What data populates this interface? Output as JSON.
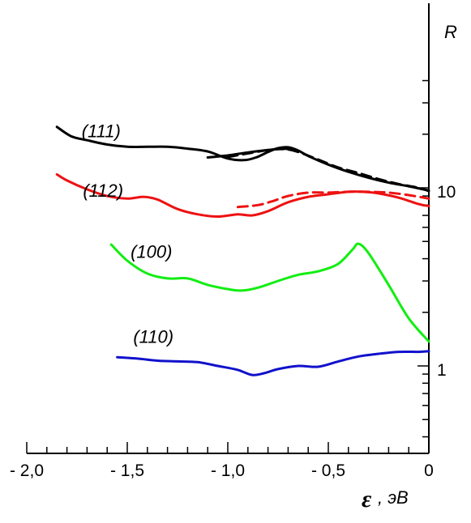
{
  "chart_data": {
    "type": "line",
    "xlim": [
      -2.0,
      0
    ],
    "ylim_log": [
      0.3,
      40
    ],
    "y_scale": "log",
    "x_ticks": [
      {
        "value": -2.0,
        "label": "- 2,0"
      },
      {
        "value": -1.5,
        "label": "- 1,5"
      },
      {
        "value": -1.0,
        "label": "- 1,0"
      },
      {
        "value": -0.5,
        "label": "- 0,5"
      },
      {
        "value": 0,
        "label": "0"
      }
    ],
    "y_ticks": [
      {
        "value": 10,
        "label": "10"
      },
      {
        "value": 1,
        "label": "1"
      }
    ],
    "xlabel_symbol": "ε",
    "xlabel_unit": ", эВ",
    "ylabel": "R",
    "series": [
      {
        "name": "(111)",
        "color": "#000000",
        "dashed": false,
        "points": [
          [
            -1.85,
            22
          ],
          [
            -1.78,
            19.5
          ],
          [
            -1.7,
            18.5
          ],
          [
            -1.6,
            17.5
          ],
          [
            -1.5,
            17
          ],
          [
            -1.4,
            17
          ],
          [
            -1.3,
            17
          ],
          [
            -1.2,
            16.6
          ],
          [
            -1.1,
            16
          ],
          [
            -1.0,
            14.6
          ],
          [
            -0.92,
            14.3
          ],
          [
            -0.86,
            14.8
          ],
          [
            -0.8,
            15.9
          ],
          [
            -0.75,
            16.7
          ],
          [
            -0.7,
            16.9
          ],
          [
            -0.65,
            16.2
          ],
          [
            -0.6,
            15.1
          ],
          [
            -0.5,
            13.5
          ],
          [
            -0.4,
            12.3
          ],
          [
            -0.3,
            11.4
          ],
          [
            -0.2,
            10.7
          ],
          [
            -0.1,
            10.2
          ],
          [
            0,
            9.65
          ]
        ]
      },
      {
        "name": "",
        "color": "#000000",
        "dashed": false,
        "points": [
          [
            -1.1,
            14.8
          ],
          [
            -1.0,
            15.2
          ],
          [
            -0.9,
            15.8
          ],
          [
            -0.8,
            16.3
          ],
          [
            -0.73,
            16.6
          ],
          [
            -0.7,
            16.5
          ]
        ]
      },
      {
        "name": "",
        "color": "#000000",
        "dashed": true,
        "points": [
          [
            -1.0,
            14.9
          ],
          [
            -0.9,
            15.6
          ],
          [
            -0.8,
            16.3
          ],
          [
            -0.72,
            16.5
          ],
          [
            -0.65,
            15.9
          ],
          [
            -0.55,
            14.4
          ],
          [
            -0.45,
            13.0
          ],
          [
            -0.35,
            12.1
          ],
          [
            -0.25,
            11.2
          ],
          [
            -0.15,
            10.5
          ],
          [
            -0.05,
            10.0
          ],
          [
            0,
            9.6
          ]
        ]
      },
      {
        "name": "(112)",
        "color": "#ee1111",
        "dashed": false,
        "points": [
          [
            -1.85,
            11.9
          ],
          [
            -1.8,
            11.0
          ],
          [
            -1.7,
            9.8
          ],
          [
            -1.6,
            9.0
          ],
          [
            -1.5,
            8.7
          ],
          [
            -1.42,
            8.9
          ],
          [
            -1.35,
            8.6
          ],
          [
            -1.25,
            7.6
          ],
          [
            -1.15,
            7.1
          ],
          [
            -1.05,
            6.9
          ],
          [
            -0.95,
            7.1
          ],
          [
            -0.88,
            7.0
          ],
          [
            -0.8,
            7.4
          ],
          [
            -0.7,
            8.3
          ],
          [
            -0.6,
            8.9
          ],
          [
            -0.5,
            9.2
          ],
          [
            -0.4,
            9.5
          ],
          [
            -0.33,
            9.5
          ],
          [
            -0.25,
            9.3
          ],
          [
            -0.15,
            8.8
          ],
          [
            -0.05,
            8.1
          ],
          [
            0,
            7.9
          ]
        ]
      },
      {
        "name": "",
        "color": "#ee1111",
        "dashed": true,
        "points": [
          [
            -0.95,
            7.8
          ],
          [
            -0.85,
            8.0
          ],
          [
            -0.78,
            8.4
          ],
          [
            -0.7,
            9.0
          ],
          [
            -0.6,
            9.4
          ],
          [
            -0.5,
            9.4
          ],
          [
            -0.4,
            9.5
          ],
          [
            -0.3,
            9.5
          ],
          [
            -0.2,
            9.4
          ],
          [
            -0.1,
            9.1
          ],
          [
            0,
            8.7
          ]
        ]
      },
      {
        "name": "(100)",
        "color": "#11ee11",
        "dashed": false,
        "points": [
          [
            -1.58,
            4.8
          ],
          [
            -1.5,
            3.9
          ],
          [
            -1.4,
            3.3
          ],
          [
            -1.3,
            3.1
          ],
          [
            -1.2,
            3.1
          ],
          [
            -1.1,
            2.85
          ],
          [
            -1.0,
            2.7
          ],
          [
            -0.93,
            2.65
          ],
          [
            -0.85,
            2.75
          ],
          [
            -0.75,
            3.0
          ],
          [
            -0.65,
            3.25
          ],
          [
            -0.55,
            3.4
          ],
          [
            -0.45,
            3.75
          ],
          [
            -0.38,
            4.5
          ],
          [
            -0.35,
            4.85
          ],
          [
            -0.3,
            4.3
          ],
          [
            -0.2,
            2.85
          ],
          [
            -0.1,
            1.85
          ],
          [
            0,
            1.37
          ]
        ]
      },
      {
        "name": "(110)",
        "color": "#1111cc",
        "dashed": false,
        "points": [
          [
            -1.55,
            1.12
          ],
          [
            -1.45,
            1.1
          ],
          [
            -1.35,
            1.07
          ],
          [
            -1.25,
            1.06
          ],
          [
            -1.15,
            1.05
          ],
          [
            -1.05,
            1.0
          ],
          [
            -0.95,
            0.95
          ],
          [
            -0.88,
            0.89
          ],
          [
            -0.82,
            0.91
          ],
          [
            -0.75,
            0.96
          ],
          [
            -0.65,
            1.0
          ],
          [
            -0.55,
            0.99
          ],
          [
            -0.45,
            1.06
          ],
          [
            -0.35,
            1.13
          ],
          [
            -0.25,
            1.17
          ],
          [
            -0.15,
            1.2
          ],
          [
            -0.05,
            1.2
          ],
          [
            0,
            1.21
          ]
        ]
      }
    ],
    "curve_labels": [
      {
        "text": "(111)",
        "x": -1.63,
        "y": 19.2
      },
      {
        "text": "(112)",
        "x": -1.62,
        "y": 8.9
      },
      {
        "text": "(100)",
        "x": -1.38,
        "y": 4.05
      },
      {
        "text": "(110)",
        "x": -1.37,
        "y": 1.35
      }
    ]
  }
}
